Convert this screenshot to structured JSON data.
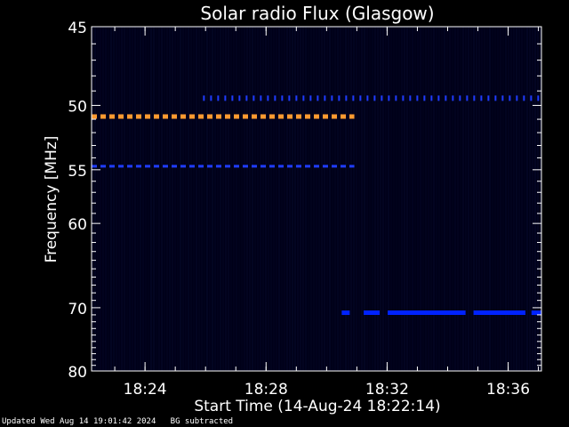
{
  "chart_data": {
    "type": "heatmap",
    "title": "Solar radio Flux (Glasgow)",
    "xlabel": "Start Time (14-Aug-24 18:22:14)",
    "ylabel": "Frequency [MHz]",
    "x_range": [
      "18:22:14",
      "18:37:06"
    ],
    "xticks": [
      "18:24",
      "18:28",
      "18:32",
      "18:36"
    ],
    "y_range": [
      45,
      80
    ],
    "yticks": [
      45,
      50,
      55,
      60,
      70,
      80
    ],
    "background_color": "#000018",
    "series": [
      {
        "frequency_mhz": 50.8,
        "start": "18:22:14",
        "end": "18:30:55",
        "style": "dashed",
        "color": "#ff9a30"
      },
      {
        "frequency_mhz": 54.7,
        "start": "18:22:14",
        "end": "18:30:55",
        "style": "dashed",
        "color": "#1f3cff"
      },
      {
        "frequency_mhz": 49.5,
        "start": "18:25:55",
        "end": "18:37:06",
        "style": "dotted",
        "color": "#1f3cff"
      },
      {
        "frequency_mhz": 70.7,
        "start": "18:30:30",
        "end": "18:37:06",
        "style": "segments",
        "color": "#0022ff"
      }
    ]
  },
  "footer": {
    "updated": "Updated Wed Aug 14 19:01:42 2024",
    "note": "BG subtracted"
  }
}
